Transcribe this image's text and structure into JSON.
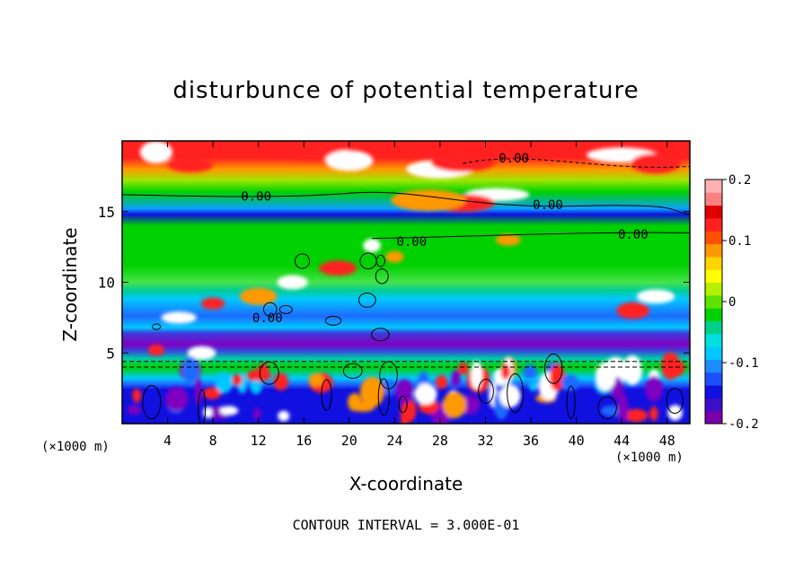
{
  "chart_data": {
    "type": "heatmap",
    "title": "disturbunce of potential temperature",
    "xlabel": "X-coordinate",
    "ylabel": "Z-coordinate",
    "x_unit": "(×1000 m)",
    "y_unit": "(×1000 m)",
    "xlim": [
      0,
      50
    ],
    "ylim": [
      0,
      20
    ],
    "x_ticks": [
      4,
      8,
      12,
      16,
      20,
      24,
      28,
      32,
      36,
      40,
      44,
      48
    ],
    "y_ticks": [
      5,
      10,
      15
    ],
    "colorbar": {
      "range": [
        -0.2,
        0.2
      ],
      "tick_values": [
        0.2,
        0.1,
        0,
        -0.1,
        -0.2
      ],
      "tick_labels": [
        "0.2",
        "0.1",
        "0",
        "-0.1",
        "-0.2"
      ]
    },
    "contour_labels": [
      {
        "text": "0.00",
        "x": 34.5,
        "y": 18.8
      },
      {
        "text": "0.00",
        "x": 11.8,
        "y": 16.1
      },
      {
        "text": "0.00",
        "x": 37.5,
        "y": 15.5
      },
      {
        "text": "0.00",
        "x": 45.0,
        "y": 13.4
      },
      {
        "text": "0.00",
        "x": 25.5,
        "y": 12.9
      },
      {
        "text": "0.00",
        "x": 12.8,
        "y": 7.5
      }
    ],
    "contour_interval_text": "CONTOUR INTERVAL = 3.000E-01"
  }
}
